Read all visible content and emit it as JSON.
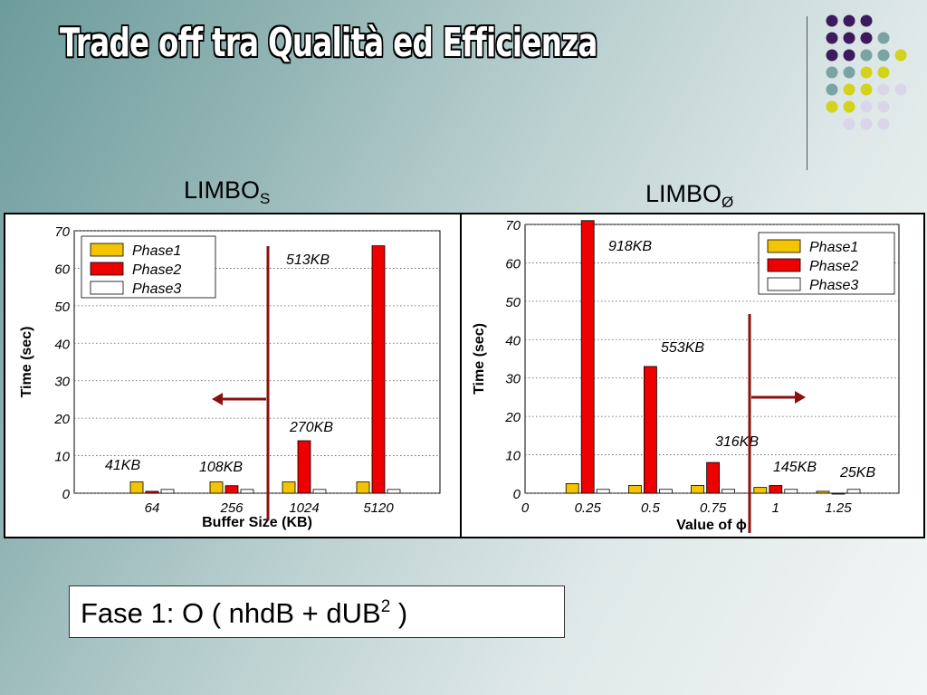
{
  "slide": {
    "title": "Trade off tra Qualità ed Efficienza",
    "formula": {
      "prefix": "Fase 1: O ( nhdB + dUB",
      "superscript": "2",
      "suffix": " )"
    },
    "dot_colors": {
      "purple": "#3d1a5e",
      "teal": "#7aa3a3",
      "yellow": "#d4d21a",
      "lavender": "#d8d6e8"
    }
  },
  "chart_data": [
    {
      "type": "bar",
      "panel_label": "LIMBO",
      "panel_label_sub": "S",
      "categories": [
        "64",
        "256",
        "1024",
        "5120"
      ],
      "series": [
        {
          "name": "Phase1",
          "color": "#f5c400",
          "values": [
            3,
            3,
            3,
            3
          ]
        },
        {
          "name": "Phase2",
          "color": "#ee0000",
          "values": [
            0.5,
            2,
            14,
            66
          ]
        },
        {
          "name": "Phase3",
          "color": "#ffffff",
          "values": [
            1,
            1,
            1,
            1
          ]
        }
      ],
      "bar_labels": [
        "41KB",
        "108KB",
        "270KB",
        "513KB"
      ],
      "xlabel": "Buffer Size (KB)",
      "ylabel": "Time (sec)",
      "yticks": [
        0,
        10,
        20,
        30,
        40,
        50,
        60,
        70
      ],
      "ylim": [
        0,
        70
      ],
      "grid": true,
      "legend": "top-left",
      "arrow": "left"
    },
    {
      "type": "bar",
      "panel_label": "LIMBO",
      "panel_label_sub": "Ø",
      "x_ticks": [
        "0",
        "0.25",
        "0.5",
        "0.75",
        "1",
        "1.25"
      ],
      "x_tick_values": [
        0,
        0.25,
        0.5,
        0.75,
        1,
        1.25
      ],
      "x": [
        0.25,
        0.5,
        0.75,
        1,
        1.25
      ],
      "series": [
        {
          "name": "Phase1",
          "color": "#f5c400",
          "values": [
            2.5,
            2,
            2,
            1.5,
            0.5
          ]
        },
        {
          "name": "Phase2",
          "color": "#ee0000",
          "values": [
            71,
            33,
            8,
            2,
            0
          ]
        },
        {
          "name": "Phase3",
          "color": "#ffffff",
          "values": [
            1,
            1,
            1,
            1,
            1
          ]
        }
      ],
      "bar_labels": [
        "918KB",
        "553KB",
        "316KB",
        "145KB",
        "25KB"
      ],
      "xlabel": "Value of ϕ",
      "ylabel": "Time (sec)",
      "yticks": [
        0,
        10,
        20,
        30,
        40,
        50,
        60,
        70
      ],
      "ylim": [
        0,
        70
      ],
      "grid": true,
      "legend": "top-right",
      "arrow": "right"
    }
  ]
}
